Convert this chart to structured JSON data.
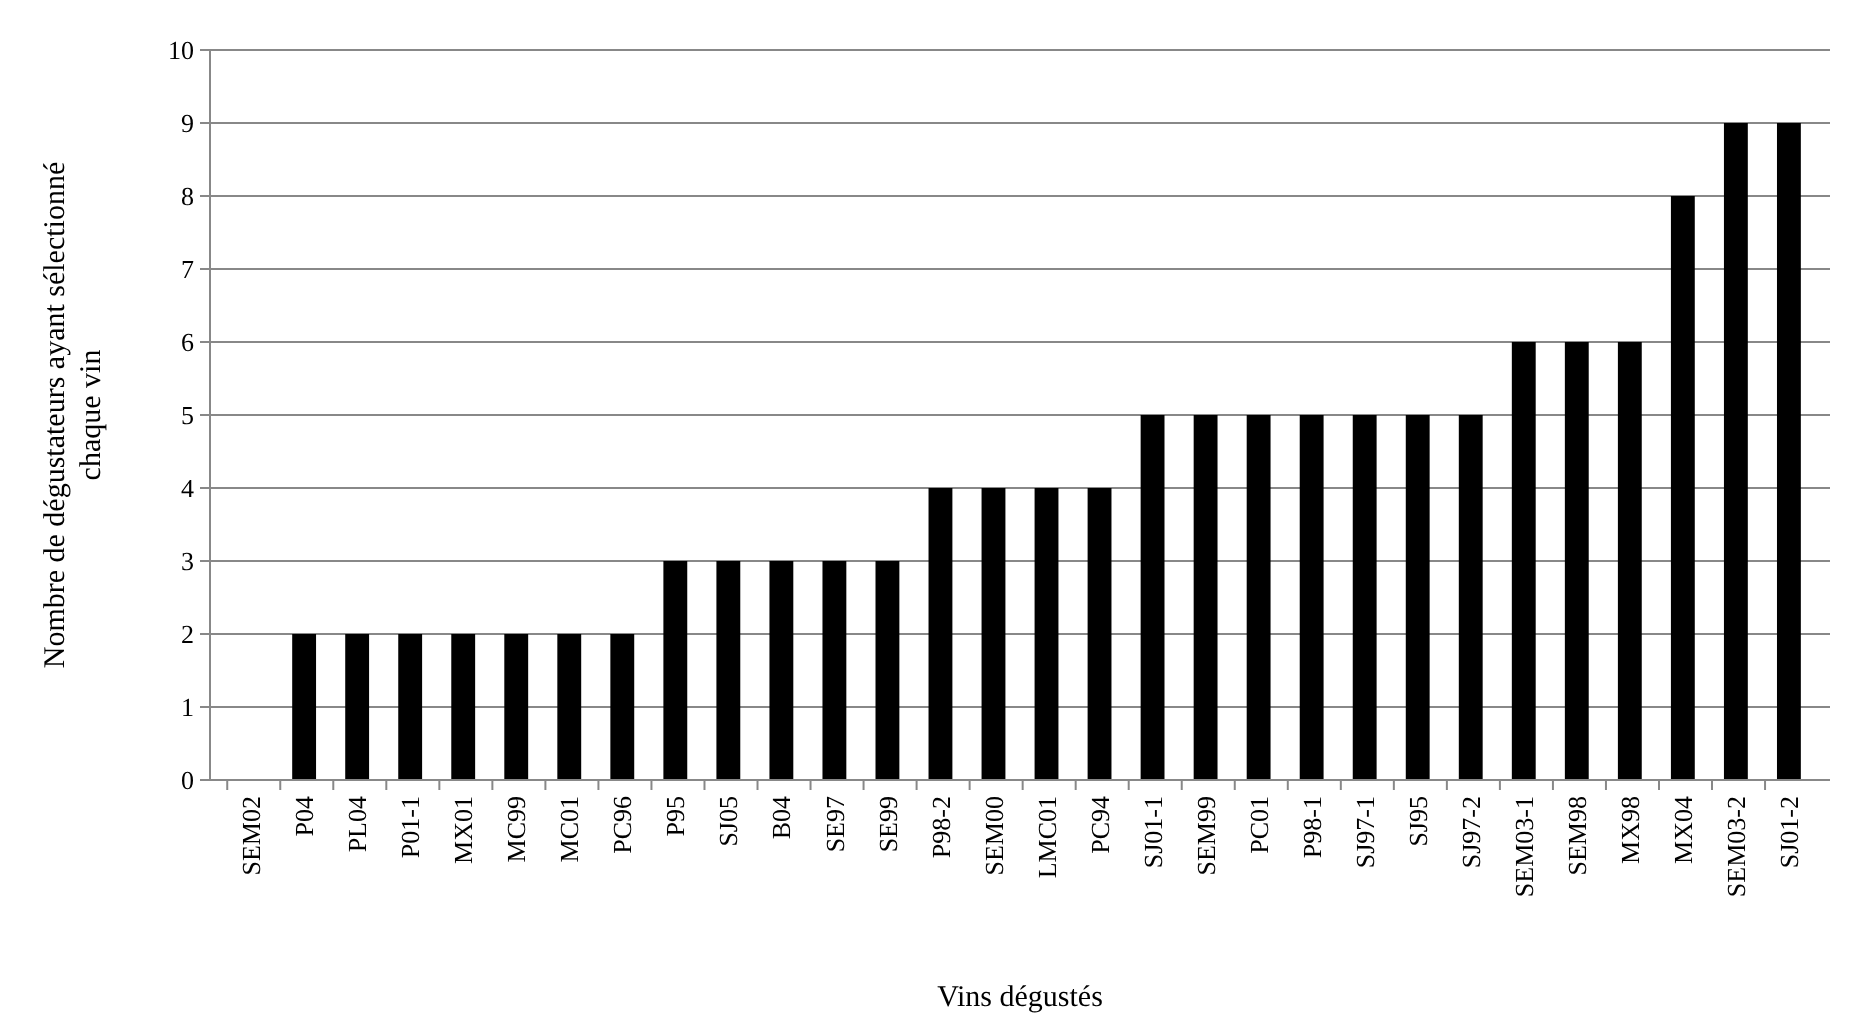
{
  "chart_data": {
    "type": "bar",
    "xlabel": "Vins dégustés",
    "ylabel": "Nombre de dégustateurs ayant sélectionné\nchaque vin",
    "categories": [
      "SEM02",
      "P04",
      "PL04",
      "P01-1",
      "MX01",
      "MC99",
      "MC01",
      "PC96",
      "P95",
      "SJ05",
      "B04",
      "SE97",
      "SE99",
      "P98-2",
      "SEM00",
      "LMC01",
      "PC94",
      "SJ01-1",
      "SEM99",
      "PC01",
      "P98-1",
      "SJ97-1",
      "SJ95",
      "SJ97-2",
      "SEM03-1",
      "SEM98",
      "MX98",
      "MX04",
      "SEM03-2",
      "SJ01-2"
    ],
    "values": [
      0,
      2,
      2,
      2,
      2,
      2,
      2,
      2,
      3,
      3,
      3,
      3,
      3,
      4,
      4,
      4,
      4,
      5,
      5,
      5,
      5,
      5,
      5,
      5,
      6,
      6,
      6,
      8,
      9,
      9
    ],
    "color": "#000000",
    "ylim": [
      0,
      10
    ],
    "yticks": [
      0,
      1,
      2,
      3,
      4,
      5,
      6,
      7,
      8,
      9,
      10
    ],
    "grid": "y"
  }
}
